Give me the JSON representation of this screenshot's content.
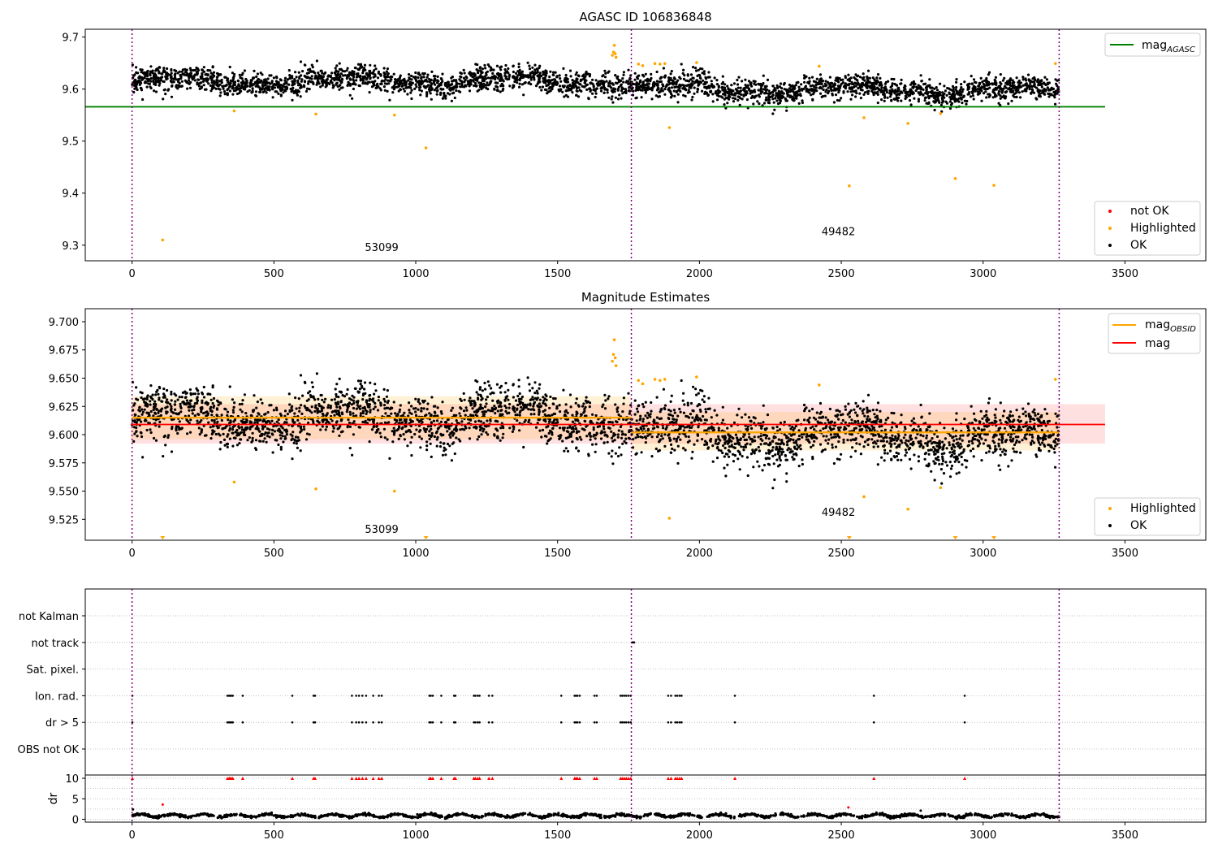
{
  "chart_data": [
    {
      "type": "scatter",
      "title": "AGASC ID 106836848",
      "xlim": [
        -165,
        3785
      ],
      "ylim": [
        9.27,
        9.715
      ],
      "x_ticks": [
        0,
        500,
        1000,
        1500,
        2000,
        2500,
        3000,
        3500
      ],
      "y_ticks": [
        9.3,
        9.4,
        9.5,
        9.6,
        9.7
      ],
      "y_tick_labels": [
        "9.3",
        "9.4",
        "9.5",
        "9.6",
        "9.7"
      ],
      "grid": false,
      "lines": [
        {
          "name": "mag_AGASC",
          "label_main": "mag",
          "label_sub": "AGASC",
          "color": "#008000",
          "y": 9.566,
          "x_range": [
            -165,
            3430
          ]
        }
      ],
      "vlines": {
        "x": [
          0,
          1760,
          3268
        ],
        "color": "#800080"
      },
      "obsid_labels": [
        {
          "text": "53099",
          "x": 880,
          "y": 9.289
        },
        {
          "text": "49482",
          "x": 2490,
          "y": 9.319
        }
      ],
      "bands": [
        {
          "obsid": "53099",
          "x_range": [
            0,
            1760
          ],
          "mean": 9.614,
          "slope": 5e-07,
          "std": 0.0138
        },
        {
          "obsid": "49482",
          "x_range": [
            1760,
            3268
          ],
          "mean": 9.602,
          "slope": -4e-06,
          "std": 0.0132
        }
      ],
      "highlighted_points": [
        [
          108,
          9.31
        ],
        [
          360,
          9.558
        ],
        [
          648,
          9.552
        ],
        [
          925,
          9.55
        ],
        [
          1036,
          9.487
        ],
        [
          1693,
          9.665
        ],
        [
          1697,
          9.671
        ],
        [
          1700,
          9.684
        ],
        [
          1703,
          9.668
        ],
        [
          1706,
          9.661
        ],
        [
          1785,
          9.648
        ],
        [
          1800,
          9.645
        ],
        [
          1843,
          9.649
        ],
        [
          1861,
          9.648
        ],
        [
          1878,
          9.649
        ],
        [
          1894,
          9.526
        ],
        [
          1990,
          9.651
        ],
        [
          2422,
          9.644
        ],
        [
          2528,
          9.414
        ],
        [
          2580,
          9.545
        ],
        [
          2735,
          9.534
        ],
        [
          2850,
          9.553
        ],
        [
          2902,
          9.428
        ],
        [
          3038,
          9.415
        ],
        [
          3255,
          9.649
        ]
      ],
      "legend": {
        "placement": "lower-right",
        "entries": [
          {
            "label": "not OK",
            "color": "#ff0000"
          },
          {
            "label": "Highlighted",
            "color": "#ffa500"
          },
          {
            "label": "OK",
            "color": "#000000"
          }
        ]
      },
      "line_legend": {
        "placement": "upper-right"
      }
    },
    {
      "type": "scatter",
      "title": "Magnitude Estimates",
      "xlim": [
        -165,
        3785
      ],
      "ylim": [
        9.5065,
        9.7115
      ],
      "x_ticks": [
        0,
        500,
        1000,
        1500,
        2000,
        2500,
        3000,
        3500
      ],
      "y_ticks": [
        9.525,
        9.55,
        9.575,
        9.6,
        9.625,
        9.65,
        9.675,
        9.7
      ],
      "y_tick_labels": [
        "9.525",
        "9.550",
        "9.575",
        "9.600",
        "9.625",
        "9.650",
        "9.675",
        "9.700"
      ],
      "grid": false,
      "lines": [
        {
          "name": "mag_OBSID",
          "label_main": "mag",
          "label_sub": "OBSID",
          "color": "#ffa500"
        },
        {
          "name": "mag",
          "label_main": "mag",
          "label_sub": "",
          "color": "#ff0000",
          "y": 9.609,
          "x_range": [
            -5,
            3430
          ],
          "band": [
            9.592,
            9.627
          ]
        }
      ],
      "obsid_segments": [
        {
          "x_range": [
            0,
            1760
          ],
          "y": 9.615,
          "band": [
            9.596,
            9.634
          ]
        },
        {
          "x_range": [
            1760,
            3268
          ],
          "y": 9.602,
          "band": [
            9.586,
            9.62
          ]
        }
      ],
      "vlines": {
        "x": [
          0,
          1760,
          3268
        ],
        "color": "#800080"
      },
      "obsid_labels": [
        {
          "text": "53099",
          "x": 880,
          "y": 9.513
        },
        {
          "text": "49482",
          "x": 2490,
          "y": 9.528
        }
      ],
      "out_of_range_markers": {
        "x": [
          108,
          1036,
          2528,
          2902,
          3038
        ],
        "color": "#ffa500"
      },
      "legend": {
        "placement": "lower-right",
        "entries": [
          {
            "label": "Highlighted",
            "color": "#ffa500"
          },
          {
            "label": "OK",
            "color": "#000000"
          }
        ]
      },
      "line_legend": {
        "placement": "upper-right"
      }
    },
    {
      "type": "scatter",
      "title": "",
      "xlim": [
        -165,
        3785
      ],
      "categories": [
        "not Kalman",
        "not track",
        "Sat. pixel.",
        "Ion. rad.",
        "dr > 5",
        "OBS not OK"
      ],
      "grid": "y-dotted",
      "vlines": {
        "x": [
          0,
          1760,
          3268
        ],
        "color": "#800080"
      },
      "flag_x": [
        1,
        336,
        342,
        345,
        350,
        355,
        390,
        565,
        640,
        645,
        775,
        790,
        800,
        812,
        825,
        850,
        870,
        880,
        1048,
        1053,
        1060,
        1090,
        1135,
        1140,
        1205,
        1210,
        1218,
        1225,
        1258,
        1270,
        1513,
        1560,
        1565,
        1570,
        1578,
        1630,
        1638,
        1722,
        1728,
        1735,
        1742,
        1750,
        1758,
        1890,
        1900,
        1915,
        1922,
        1930,
        1937,
        2125,
        2615,
        2935
      ],
      "not_track_x": [
        1763,
        1766,
        1770
      ]
    },
    {
      "type": "line",
      "title": "",
      "ylabel": "dr",
      "xlim": [
        -165,
        3785
      ],
      "ylim": [
        -0.7,
        10.8
      ],
      "x_ticks": [
        0,
        500,
        1000,
        1500,
        2000,
        2500,
        3000,
        3500
      ],
      "y_ticks": [
        0,
        5,
        10
      ],
      "y_tick_labels": [
        "0",
        "5",
        "10"
      ],
      "grid": "y-dotted",
      "vlines": {
        "x": [
          0,
          1760,
          3268
        ],
        "color": "#800080"
      },
      "clipped_level": 10,
      "extra_points": [
        {
          "x": 108,
          "y": 3.6,
          "color": "#ff0000"
        },
        {
          "x": 2525,
          "y": 2.9,
          "color": "#ff0000"
        },
        {
          "x": 3,
          "y": 2.4,
          "color": "#000000"
        },
        {
          "x": 2780,
          "y": 2.1,
          "color": "#000000"
        }
      ]
    }
  ]
}
